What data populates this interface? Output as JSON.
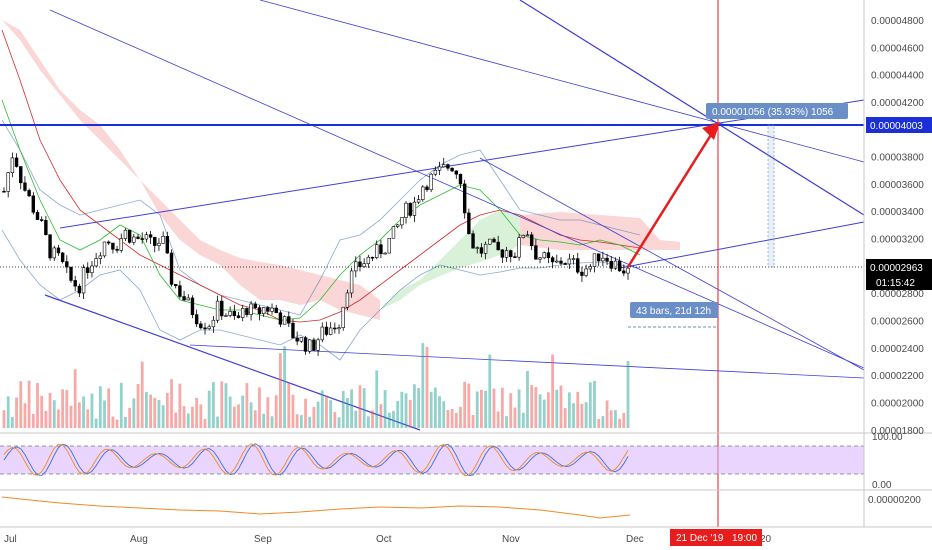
{
  "chart_data": {
    "type": "candlestick",
    "price_axis": {
      "ticks": [
        "0.00004800",
        "0.00004600",
        "0.00004400",
        "0.00004200",
        "0.00003800",
        "0.00003600",
        "0.00003400",
        "0.00003200",
        "0.00002800",
        "0.00002600",
        "0.00002400",
        "0.00002200",
        "0.00002000",
        "0.00001800"
      ],
      "range": [
        1.78e-05,
        4.95e-05
      ]
    },
    "time_axis": {
      "ticks": [
        "Jul",
        "Aug",
        "Sep",
        "Oct",
        "Nov",
        "Dec",
        "20"
      ]
    },
    "rsi_axis": {
      "ticks": [
        "100.00",
        "0.00"
      ]
    },
    "obv_axis": {
      "ticks": [
        "0.00000200"
      ]
    },
    "current_price": {
      "label": "0.00002963",
      "value": 2.963e-05,
      "countdown": "01:15:42"
    },
    "target_line": {
      "label": "0.00004003",
      "value": 4.003e-05
    },
    "measure_tag": {
      "label": "0.00001056 (35.93%) 1056"
    },
    "bars_tag": {
      "label": "43 bars, 21d 12h"
    },
    "cursor_time": {
      "label": "21 Dec '19",
      "time": "19:00"
    },
    "colors": {
      "up": "#26a69a",
      "down": "#ef5350",
      "candle": "#000000",
      "trend": "#3f3fd6",
      "target": "#1a2fd8",
      "arrow": "#e81c1c",
      "cursor": "#e81c1c",
      "rsi_band": "#d9b3ff",
      "obv": "#f08a24",
      "cloud_bear": "#f5b5b5",
      "cloud_bull": "#b8e6b8",
      "measure_tag": "#6a8ec7",
      "bars_tag": "#6a8ec7"
    },
    "close_series": [
      3.55e-05,
      3.85e-05,
      3.6e-05,
      3.45e-05,
      3.3e-05,
      3.1e-05,
      3.05e-05,
      2.9e-05,
      2.85e-05,
      3e-05,
      3.1e-05,
      3.2e-05,
      3.15e-05,
      3.25e-05,
      3.2e-05,
      3.2e-05,
      3.15e-05,
      3.2e-05,
      2.9e-05,
      2.8e-05,
      2.7e-05,
      2.6e-05,
      2.58e-05,
      2.7e-05,
      2.65e-05,
      2.6e-05,
      2.7e-05,
      2.65e-05,
      2.7e-05,
      2.68e-05,
      2.6e-05,
      2.5e-05,
      2.45e-05,
      2.4e-05,
      2.5e-05,
      2.55e-05,
      2.6e-05,
      2.9e-05,
      3e-05,
      3.05e-05,
      3.1e-05,
      3.15e-05,
      3.25e-05,
      3.4e-05,
      3.45e-05,
      3.6e-05,
      3.65e-05,
      3.7e-05,
      3.75e-05,
      3.65e-05,
      3.2e-05,
      3.1e-05,
      3.15e-05,
      3.1e-05,
      3.12e-05,
      3.1e-05,
      3.3e-05,
      3.1e-05,
      3.05e-05,
      3e-05,
      3.05e-05,
      3.02e-05,
      2.98e-05,
      3e-05,
      3.1e-05,
      3.05e-05,
      3e-05,
      2.96e-05
    ]
  }
}
